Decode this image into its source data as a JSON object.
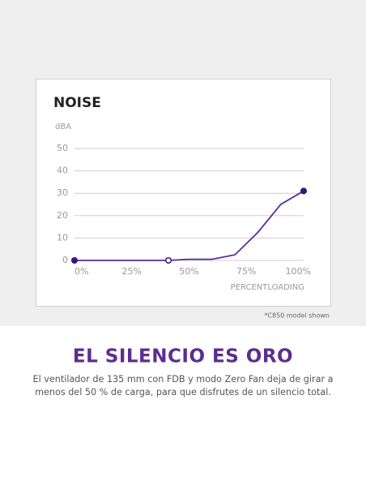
{
  "chart_data": {
    "type": "line",
    "title": "NOISE",
    "y_label": "dBA",
    "x_label": "PERCENTLOADING",
    "x": [
      0,
      41,
      50,
      60,
      70,
      80,
      90,
      100
    ],
    "values": [
      0,
      0,
      0.5,
      0.5,
      2.5,
      12.5,
      25,
      31
    ],
    "markers": [
      "filled",
      "open",
      null,
      null,
      null,
      null,
      null,
      "filled"
    ],
    "color": "#5b2aa0",
    "marker_color": "#3b1678",
    "xlim": [
      0,
      100
    ],
    "xticks": [
      {
        "value": 0,
        "label": "0%"
      },
      {
        "value": 25,
        "label": "25%"
      },
      {
        "value": 50,
        "label": "50%"
      },
      {
        "value": 75,
        "label": "75%"
      },
      {
        "value": 100,
        "label": "100%"
      }
    ],
    "ylim": [
      0,
      50
    ],
    "yticks": [
      0,
      10,
      20,
      30,
      40,
      50
    ],
    "grid": true
  },
  "footnote": "*C850 model shown",
  "headline": "EL SILENCIO ES ORO",
  "body": [
    "El ventilador de 135 mm con FDB y modo Zero Fan deja de girar a",
    "menos del 50 % de carga, para que disfrutes de un silencio total."
  ]
}
